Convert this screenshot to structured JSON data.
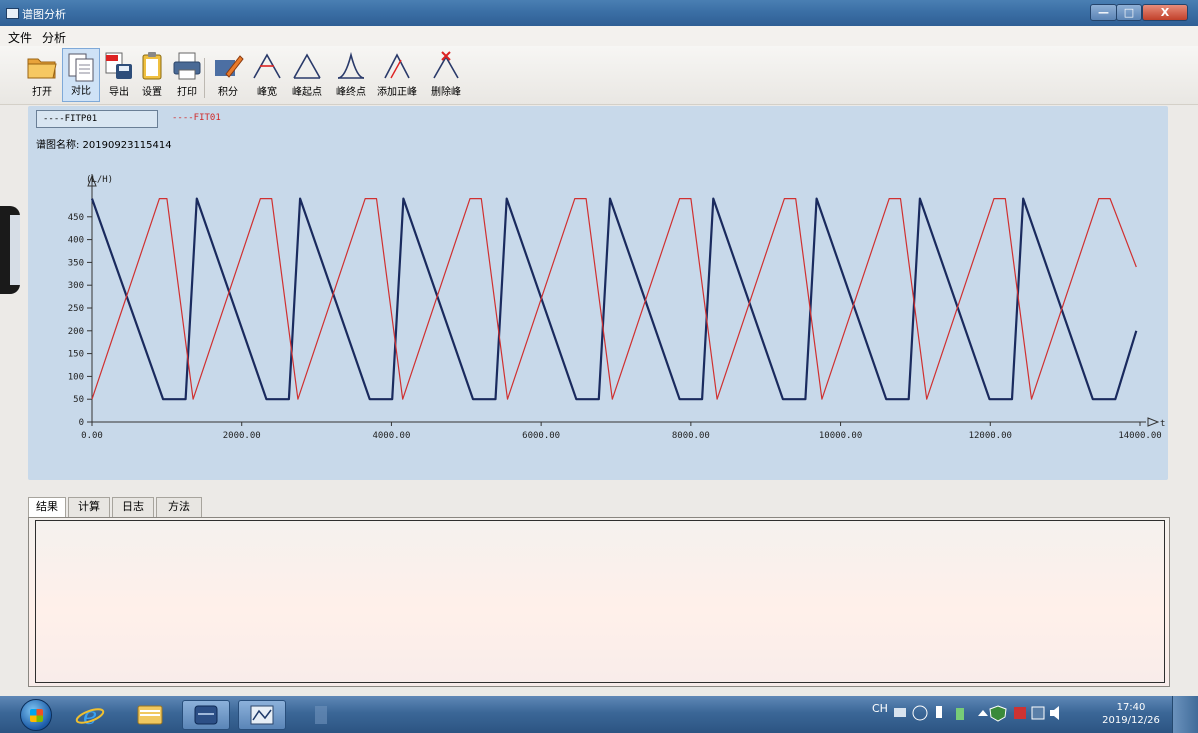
{
  "window": {
    "title": "谱图分析",
    "buttons": {
      "minimize": "—",
      "maximize": "□",
      "close": "X"
    }
  },
  "menu": {
    "file": "文件",
    "analysis": "分析"
  },
  "toolbar": {
    "open": "打开",
    "compare": "对比",
    "export": "导出",
    "settings": "设置",
    "print": "打印",
    "integrate": "积分",
    "peak_width": "峰宽",
    "peak_start": "峰起点",
    "peak_end": "峰终点",
    "add_peak": "添加正峰",
    "delete_peak": "删除峰"
  },
  "legend": {
    "item1": "----FITP01",
    "item2": "----FIT01"
  },
  "spectrum": {
    "name_label": "谱图名称: 20190923115414"
  },
  "chart_data": {
    "type": "line",
    "ylabel": "(L/H)",
    "xlabel": "t (m",
    "xlim": [
      0,
      14000
    ],
    "ylim": [
      0,
      500
    ],
    "x_ticks": [
      "0.00",
      "2000.00",
      "4000.00",
      "6000.00",
      "8000.00",
      "10000.00",
      "12000.00",
      "14000.00"
    ],
    "y_ticks": [
      "0",
      "50",
      "100",
      "150",
      "200",
      "250",
      "300",
      "350",
      "400",
      "450"
    ],
    "series": [
      {
        "name": "FITP01",
        "color": "#1a2a5e",
        "x": [
          0,
          950,
          1250,
          1400,
          2330,
          2630,
          2780,
          3710,
          4010,
          4160,
          5090,
          5390,
          5540,
          6470,
          6770,
          6920,
          7850,
          8150,
          8300,
          9230,
          9530,
          9680,
          10610,
          10910,
          11060,
          11990,
          12290,
          12440,
          13370,
          13670,
          13950
        ],
        "y": [
          490,
          50,
          50,
          490,
          50,
          50,
          490,
          50,
          50,
          490,
          50,
          50,
          490,
          50,
          50,
          490,
          50,
          50,
          490,
          50,
          50,
          490,
          50,
          50,
          490,
          50,
          50,
          490,
          50,
          50,
          200
        ]
      },
      {
        "name": "FIT01",
        "color": "#d03030",
        "x": [
          0,
          900,
          1000,
          1350,
          2250,
          2400,
          2750,
          3650,
          3800,
          4150,
          5050,
          5200,
          5550,
          6450,
          6600,
          6950,
          7850,
          8000,
          8350,
          9250,
          9400,
          9750,
          10650,
          10800,
          11150,
          12050,
          12200,
          12550,
          13450,
          13600,
          13950
        ],
        "y": [
          50,
          490,
          490,
          50,
          490,
          490,
          50,
          490,
          490,
          50,
          490,
          490,
          50,
          490,
          490,
          50,
          490,
          490,
          50,
          490,
          490,
          50,
          490,
          490,
          50,
          490,
          490,
          50,
          490,
          490,
          340
        ]
      }
    ]
  },
  "tabs": [
    "结果",
    "计算",
    "日志",
    "方法"
  ],
  "taskbar": {
    "tray_lang": "CH",
    "time": "17:40",
    "date": "2019/12/26"
  }
}
